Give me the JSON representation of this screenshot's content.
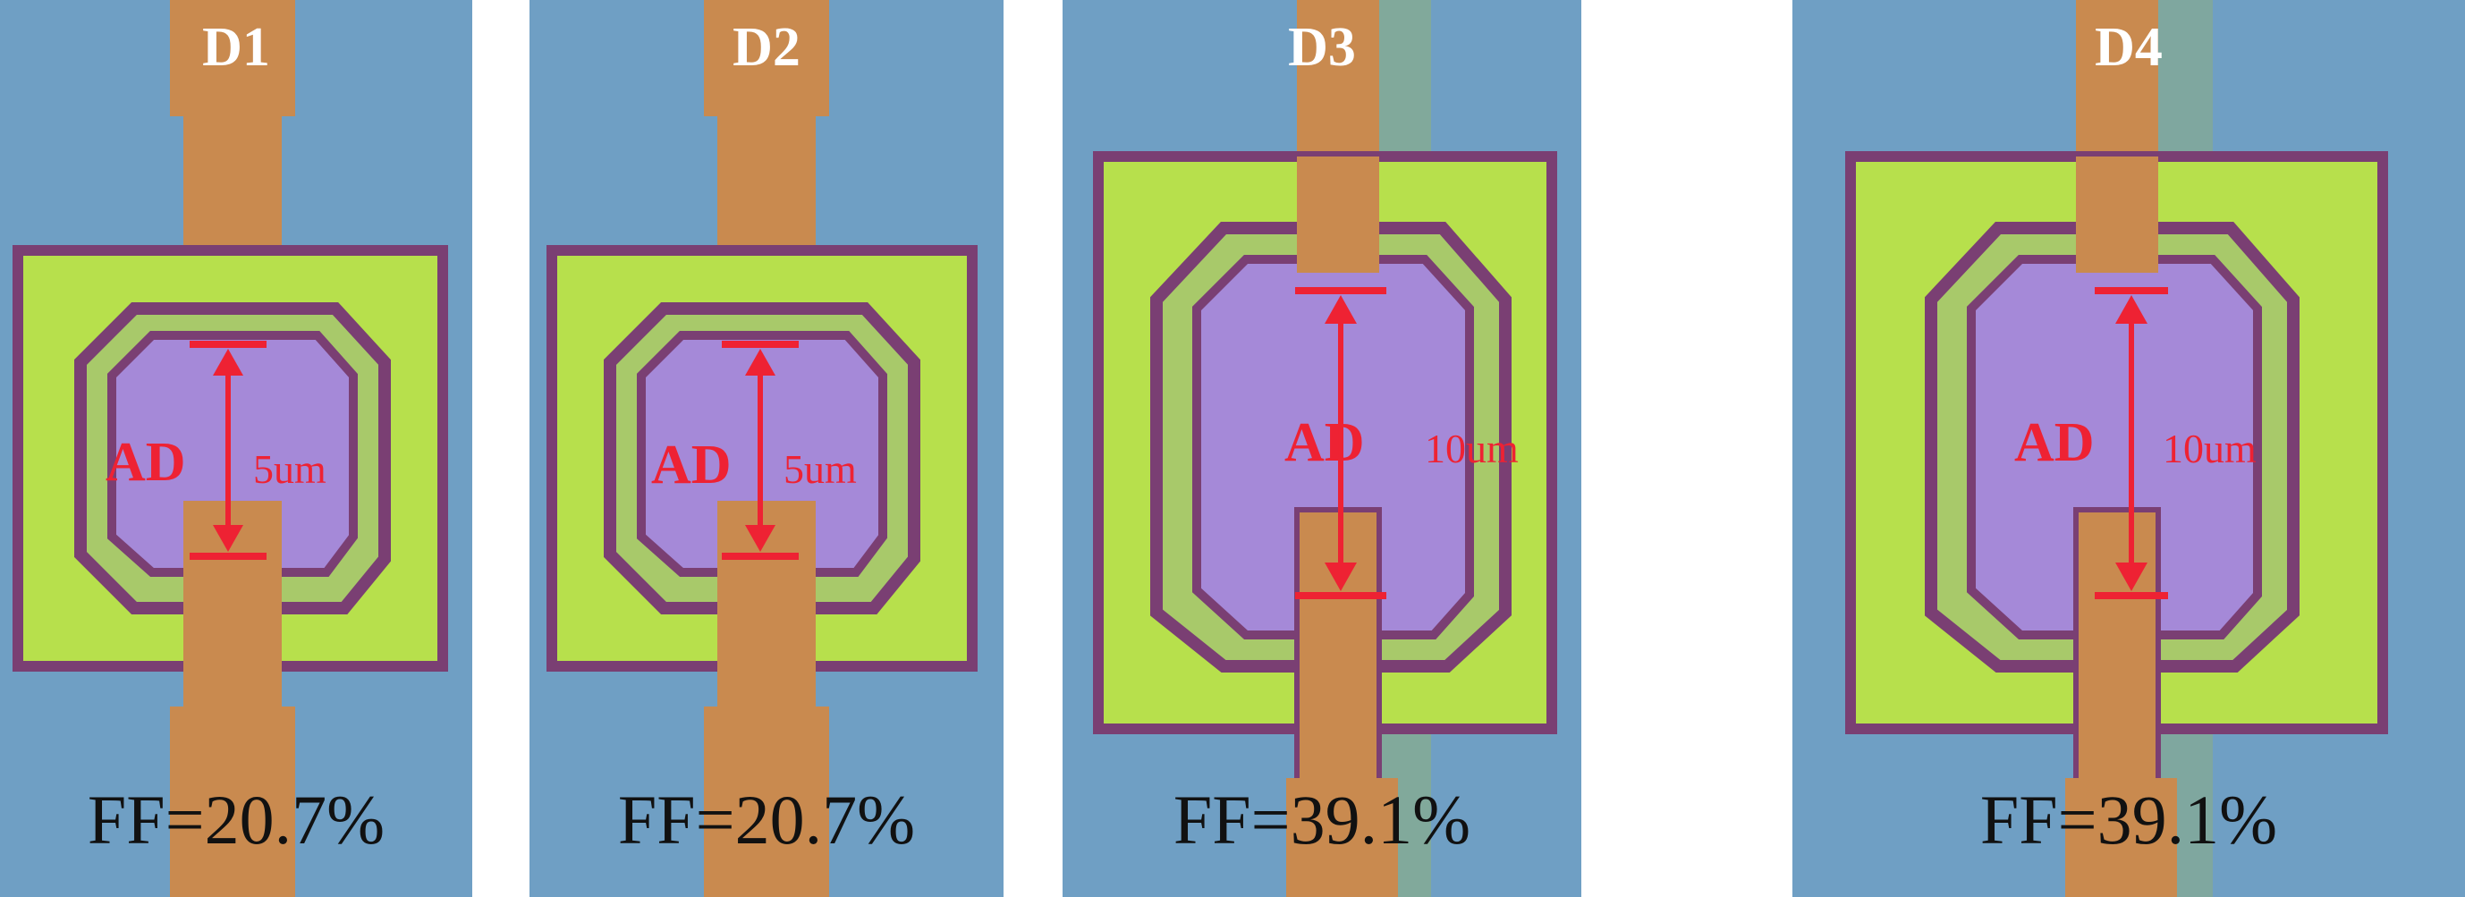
{
  "panels": [
    {
      "title": "D1",
      "ad_label": "AD",
      "size_label": "5um",
      "ff_text": "FF=20.7%"
    },
    {
      "title": "D2",
      "ad_label": "AD",
      "size_label": "5um",
      "ff_text": "FF=20.7%"
    },
    {
      "title": "D3",
      "ad_label": "AD",
      "size_label": "10um",
      "ff_text": "FF=39.1%"
    },
    {
      "title": "D4",
      "ad_label": "AD",
      "size_label": "10um",
      "ff_text": "FF=39.1%"
    }
  ],
  "colors": {
    "background": "#6f9fc4",
    "electrode": "#c98a4f",
    "pad": "#b7e04c",
    "rim": "#7a3f73",
    "active_area": "#a589d8",
    "annotation": "#ee2233"
  }
}
